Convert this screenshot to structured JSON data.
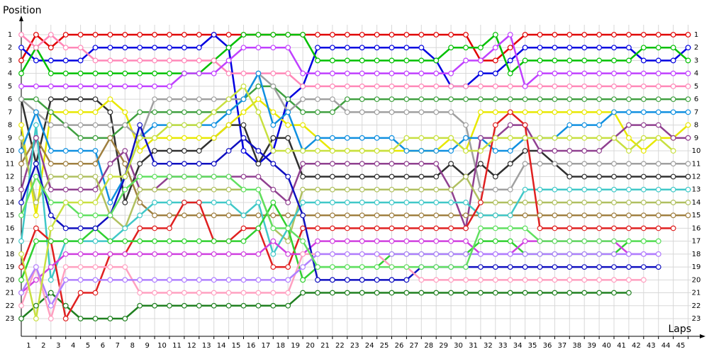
{
  "chart_data": {
    "type": "line",
    "x_label": "Laps",
    "y_label": "Position",
    "y_inverted": true,
    "grid": true,
    "x": [
      0,
      1,
      2,
      3,
      4,
      5,
      6,
      7,
      8,
      9,
      10,
      11,
      12,
      13,
      14,
      15,
      16,
      17,
      18,
      19,
      20,
      21,
      22,
      23,
      24,
      25,
      26,
      27,
      28,
      29,
      30,
      31,
      32,
      33,
      34,
      35,
      36,
      37,
      38,
      39,
      40,
      41,
      42,
      43,
      44,
      45
    ],
    "xlim": [
      0,
      45
    ],
    "xticks": [
      1,
      2,
      3,
      4,
      5,
      6,
      7,
      8,
      9,
      10,
      11,
      12,
      13,
      14,
      15,
      16,
      17,
      18,
      19,
      20,
      21,
      22,
      23,
      24,
      25,
      26,
      27,
      28,
      29,
      30,
      31,
      32,
      33,
      34,
      35,
      36,
      37,
      38,
      39,
      40,
      41,
      42,
      43,
      44,
      45
    ],
    "ylim": [
      1,
      23
    ],
    "yticks": [
      1,
      2,
      3,
      4,
      5,
      6,
      7,
      8,
      9,
      10,
      11,
      12,
      13,
      14,
      15,
      16,
      17,
      18,
      19,
      20,
      21,
      22,
      23
    ],
    "series": [
      {
        "color": "#e00000",
        "values": [
          3,
          1,
          2,
          1,
          1,
          1,
          1,
          1,
          1,
          1,
          1,
          1,
          1,
          1,
          1,
          1,
          1,
          1,
          1,
          1,
          1,
          1,
          1,
          1,
          1,
          1,
          1,
          1,
          1,
          1,
          1,
          3,
          3,
          2,
          1,
          1,
          1,
          1,
          1,
          1,
          1,
          1,
          1,
          1,
          1,
          1
        ]
      },
      {
        "color": "#0000e0",
        "values": [
          2,
          3,
          3,
          3,
          3,
          2,
          2,
          2,
          2,
          2,
          2,
          2,
          2,
          1,
          2,
          10,
          11,
          10,
          6,
          5,
          2,
          2,
          2,
          2,
          2,
          2,
          2,
          2,
          3,
          5,
          5,
          4,
          4,
          3,
          2,
          2,
          2,
          2,
          2,
          2,
          2,
          2,
          3,
          3,
          3,
          2
        ]
      },
      {
        "color": "#00c000",
        "values": [
          4,
          2,
          4,
          4,
          4,
          4,
          4,
          4,
          4,
          4,
          4,
          4,
          4,
          3,
          2,
          1,
          1,
          1,
          1,
          1,
          3,
          3,
          3,
          3,
          3,
          3,
          3,
          3,
          3,
          2,
          2,
          2,
          1,
          4,
          3,
          3,
          3,
          3,
          3,
          3,
          3,
          3,
          2,
          2,
          2,
          3
        ]
      },
      {
        "color": "#ff88b8",
        "values": [
          1,
          2,
          1,
          2,
          2,
          3,
          3,
          3,
          3,
          3,
          3,
          3,
          3,
          3,
          4,
          4,
          4,
          4,
          4,
          5,
          5,
          5,
          5,
          5,
          5,
          5,
          5,
          5,
          5,
          5,
          5,
          5,
          5,
          5,
          5,
          5,
          5,
          5,
          5,
          5,
          5,
          5,
          5,
          5,
          5,
          5
        ]
      },
      {
        "color": "#c040ff",
        "values": [
          5,
          5,
          5,
          5,
          5,
          5,
          5,
          5,
          5,
          5,
          5,
          4,
          4,
          4,
          3,
          2,
          2,
          2,
          2,
          4,
          4,
          4,
          4,
          4,
          4,
          4,
          4,
          4,
          4,
          4,
          3,
          3,
          2,
          1,
          5,
          4,
          4,
          4,
          4,
          4,
          4,
          4,
          4,
          4,
          4,
          4
        ]
      },
      {
        "color": "#303030",
        "values": [
          6,
          11,
          6,
          6,
          6,
          6,
          7,
          14,
          11,
          10,
          10,
          10,
          10,
          9,
          8,
          8,
          11,
          9,
          9,
          12,
          12,
          12,
          12,
          12,
          12,
          12,
          12,
          12,
          12,
          11,
          12,
          11,
          12,
          11,
          10,
          10,
          11,
          12,
          12,
          12,
          12,
          12,
          12,
          12,
          12,
          12
        ]
      },
      {
        "color": "#e8e800",
        "values": [
          8,
          15,
          7,
          7,
          7,
          7,
          6,
          7,
          10,
          9,
          9,
          9,
          9,
          9,
          8,
          7,
          6,
          7,
          8,
          8,
          9,
          10,
          10,
          10,
          10,
          10,
          10,
          10,
          10,
          9,
          10,
          7,
          7,
          7,
          7,
          7,
          7,
          7,
          7,
          7,
          7,
          9,
          10,
          9,
          9,
          8
        ]
      },
      {
        "color": "#208020",
        "values": [
          23,
          22,
          21,
          22,
          23,
          23,
          23,
          23,
          22,
          22,
          22,
          22,
          22,
          22,
          22,
          22,
          22,
          22,
          22,
          21,
          21,
          21,
          21,
          21,
          21,
          21,
          21,
          21,
          21,
          21,
          21,
          21,
          21,
          21,
          21,
          21,
          21,
          21,
          21,
          21,
          21,
          21,
          null,
          null,
          null,
          null
        ]
      },
      {
        "color": "#40a040",
        "values": [
          6,
          6,
          7,
          8,
          9,
          9,
          9,
          8,
          7,
          7,
          7,
          7,
          7,
          7,
          7,
          6,
          5,
          5,
          6,
          7,
          7,
          7,
          6,
          6,
          6,
          6,
          6,
          6,
          6,
          6,
          6,
          6,
          6,
          6,
          6,
          6,
          6,
          6,
          6,
          6,
          6,
          6,
          6,
          6,
          6,
          6
        ]
      },
      {
        "color": "#a0a0a0",
        "values": [
          6,
          7,
          8,
          8,
          8,
          8,
          8,
          8,
          9,
          6,
          6,
          6,
          6,
          6,
          6,
          6,
          4,
          5,
          7,
          6,
          6,
          6,
          7,
          7,
          7,
          7,
          7,
          7,
          7,
          7,
          8,
          13,
          13,
          13,
          11,
          11,
          11,
          11,
          11,
          11,
          11,
          11,
          11,
          11,
          11,
          11
        ]
      },
      {
        "color": "#1090e0",
        "values": [
          10,
          7,
          10,
          10,
          10,
          10,
          14,
          12,
          9,
          8,
          8,
          8,
          8,
          8,
          7,
          6,
          4,
          8,
          7,
          10,
          9,
          9,
          9,
          9,
          9,
          9,
          10,
          10,
          10,
          10,
          9,
          9,
          10,
          10,
          9,
          9,
          9,
          8,
          8,
          8,
          7,
          7,
          7,
          7,
          7,
          7
        ]
      },
      {
        "color": "#a08040",
        "values": [
          11,
          9,
          11,
          11,
          11,
          11,
          9,
          11,
          14,
          15,
          15,
          15,
          15,
          15,
          15,
          15,
          15,
          15,
          15,
          15,
          15,
          15,
          15,
          15,
          15,
          15,
          15,
          15,
          15,
          15,
          15,
          15,
          15,
          15,
          15,
          15,
          15,
          15,
          15,
          15,
          15,
          15,
          15,
          15,
          15,
          15
        ]
      },
      {
        "color": "#904090",
        "values": [
          13,
          9,
          13,
          13,
          13,
          13,
          11,
          10,
          13,
          13,
          12,
          12,
          12,
          12,
          12,
          12,
          12,
          13,
          14,
          11,
          11,
          11,
          11,
          11,
          11,
          11,
          11,
          11,
          11,
          13,
          16,
          9,
          9,
          8,
          8,
          10,
          10,
          10,
          10,
          10,
          9,
          8,
          8,
          8,
          9,
          9
        ]
      },
      {
        "color": "#b0c060",
        "values": [
          9,
          14,
          12,
          12,
          12,
          12,
          15,
          16,
          13,
          13,
          13,
          13,
          13,
          13,
          13,
          13,
          13,
          16,
          17,
          13,
          13,
          13,
          13,
          13,
          13,
          13,
          13,
          13,
          13,
          13,
          12,
          14,
          14,
          14,
          14,
          14,
          14,
          14,
          14,
          14,
          14,
          14,
          14,
          14,
          14,
          14
        ]
      },
      {
        "color": "#40c8c8",
        "values": [
          17,
          8,
          20,
          17,
          17,
          17,
          17,
          16,
          15,
          14,
          14,
          14,
          14,
          14,
          14,
          15,
          14,
          18,
          16,
          14,
          14,
          14,
          14,
          14,
          14,
          14,
          14,
          14,
          14,
          14,
          14,
          15,
          15,
          15,
          13,
          13,
          13,
          13,
          13,
          13,
          13,
          13,
          13,
          13,
          13,
          13
        ]
      },
      {
        "color": "#e02020",
        "values": [
          19,
          16,
          17,
          23,
          21,
          21,
          18,
          18,
          16,
          16,
          16,
          14,
          14,
          17,
          17,
          16,
          16,
          19,
          19,
          16,
          16,
          16,
          16,
          16,
          16,
          16,
          16,
          16,
          16,
          16,
          16,
          14,
          8,
          7,
          8,
          16,
          16,
          16,
          16,
          16,
          16,
          16,
          16,
          16,
          16,
          null
        ]
      },
      {
        "color": "#30d030",
        "values": [
          20,
          17,
          17,
          17,
          17,
          16,
          17,
          17,
          17,
          17,
          17,
          17,
          17,
          17,
          17,
          17,
          16,
          14,
          16,
          20,
          19,
          19,
          19,
          19,
          19,
          18,
          18,
          18,
          18,
          18,
          18,
          17,
          17,
          17,
          18,
          18,
          18,
          18,
          18,
          18,
          18,
          17,
          17,
          17,
          null,
          null
        ]
      },
      {
        "color": "#d040e0",
        "values": [
          21,
          20,
          19,
          18,
          18,
          18,
          18,
          18,
          18,
          18,
          18,
          18,
          18,
          18,
          18,
          18,
          18,
          17,
          18,
          18,
          17,
          17,
          17,
          17,
          17,
          17,
          17,
          17,
          17,
          17,
          17,
          18,
          18,
          18,
          17,
          17,
          17,
          17,
          17,
          17,
          17,
          18,
          18,
          18,
          null,
          null
        ]
      },
      {
        "color": "#1010c0",
        "values": [
          14,
          11,
          15,
          16,
          16,
          16,
          15,
          12,
          8,
          11,
          11,
          11,
          11,
          11,
          10,
          9,
          10,
          11,
          12,
          15,
          20,
          20,
          20,
          20,
          20,
          20,
          20,
          19,
          19,
          19,
          19,
          19,
          19,
          19,
          19,
          19,
          19,
          19,
          19,
          19,
          19,
          19,
          19,
          19,
          null,
          null
        ]
      },
      {
        "color": "#ffa0c0",
        "values": [
          22,
          19,
          23,
          19,
          19,
          19,
          19,
          19,
          21,
          21,
          21,
          21,
          21,
          21,
          21,
          21,
          21,
          21,
          21,
          18,
          18,
          18,
          18,
          18,
          18,
          19,
          19,
          20,
          20,
          20,
          20,
          20,
          20,
          20,
          20,
          20,
          20,
          20,
          20,
          20,
          20,
          20,
          20,
          null,
          null,
          null
        ]
      },
      {
        "color": "#b080ff",
        "values": [
          21,
          19,
          22,
          20,
          20,
          20,
          20,
          20,
          20,
          20,
          20,
          20,
          20,
          20,
          20,
          20,
          20,
          20,
          20,
          19,
          18,
          18,
          18,
          18,
          18,
          18,
          18,
          18,
          18,
          18,
          18,
          18,
          18,
          18,
          18,
          18,
          18,
          18,
          18,
          18,
          18,
          18,
          18,
          18,
          null,
          null
        ]
      },
      {
        "color": "#60e060",
        "values": [
          15,
          12,
          14,
          14,
          15,
          15,
          15,
          13,
          12,
          12,
          12,
          12,
          12,
          12,
          12,
          13,
          13,
          16,
          16,
          17,
          19,
          19,
          19,
          19,
          19,
          19,
          19,
          19,
          19,
          19,
          19,
          16,
          16,
          16,
          16,
          17,
          17,
          17,
          17,
          17,
          17,
          17,
          17,
          17,
          null,
          null
        ]
      },
      {
        "color": "#c8e040",
        "values": [
          18,
          23,
          16,
          14,
          14,
          14,
          12,
          12,
          9,
          9,
          8,
          8,
          8,
          7,
          6,
          5,
          7,
          10,
          10,
          10,
          10,
          10,
          10,
          10,
          10,
          10,
          9,
          9,
          9,
          9,
          10,
          10,
          9,
          9,
          9,
          9,
          9,
          9,
          9,
          9,
          9,
          10,
          9,
          9,
          10,
          null
        ]
      }
    ]
  }
}
